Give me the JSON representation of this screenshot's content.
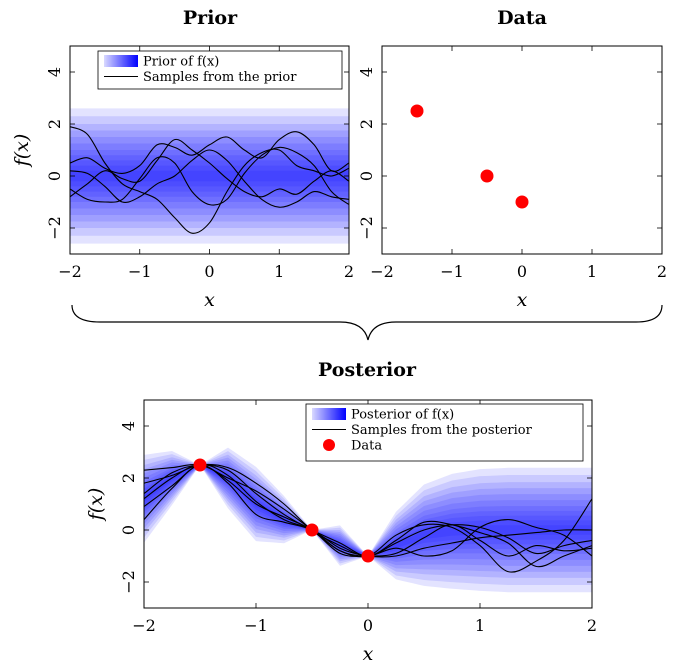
{
  "chart_data": [
    {
      "id": "prior",
      "type": "area",
      "title": "Prior",
      "xlabel": "x",
      "ylabel": "f(x)",
      "xlim": [
        -2,
        2
      ],
      "ylim": [
        -3,
        5
      ],
      "xticks": [
        "−2",
        "−1",
        "0",
        "1",
        "2"
      ],
      "yticks": [
        "−2",
        "0",
        "2",
        "4"
      ],
      "legend": [
        "Prior of f(x)",
        "Samples from the prior"
      ],
      "legend_position": "top",
      "band": {
        "x": [
          -2,
          2
        ],
        "mean": [
          0,
          0
        ],
        "std": [
          1.0,
          1.0
        ]
      },
      "series": [
        {
          "x": [
            -2.0,
            -1.75,
            -1.5,
            -1.25,
            -1.0,
            -0.75,
            -0.5,
            -0.25,
            0.0,
            0.25,
            0.5,
            0.75,
            1.0,
            1.25,
            1.5,
            1.75,
            2.0
          ],
          "y": [
            1.9,
            1.6,
            0.5,
            -0.3,
            -0.6,
            -0.9,
            -1.6,
            -2.2,
            -1.8,
            -0.6,
            0.4,
            0.9,
            1.0,
            0.4,
            0.2,
            0.0,
            0.3
          ]
        },
        {
          "x": [
            -2.0,
            -1.75,
            -1.5,
            -1.25,
            -1.0,
            -0.75,
            -0.5,
            -0.25,
            0.0,
            0.25,
            0.5,
            0.75,
            1.0,
            1.25,
            1.5,
            1.75,
            2.0
          ],
          "y": [
            0.5,
            0.7,
            0.3,
            0.1,
            0.4,
            1.2,
            1.1,
            0.8,
            1.2,
            1.5,
            1.0,
            0.7,
            1.4,
            1.7,
            1.2,
            0.2,
            0.5
          ]
        },
        {
          "x": [
            -2.0,
            -1.75,
            -1.5,
            -1.25,
            -1.0,
            -0.75,
            -0.5,
            -0.25,
            0.0,
            0.25,
            0.5,
            0.75,
            1.0,
            1.25,
            1.5,
            1.75,
            2.0
          ],
          "y": [
            -0.8,
            -0.3,
            0.2,
            -0.1,
            -0.2,
            0.6,
            1.4,
            1.0,
            0.5,
            -0.1,
            -0.6,
            -0.8,
            -0.5,
            -0.7,
            -0.2,
            0.2,
            -0.2
          ]
        },
        {
          "x": [
            -2.0,
            -1.75,
            -1.5,
            -1.25,
            -1.0,
            -0.75,
            -0.5,
            -0.25,
            0.0,
            0.25,
            0.5,
            0.75,
            1.0,
            1.25,
            1.5,
            1.75,
            2.0
          ],
          "y": [
            -0.5,
            -0.9,
            -1.0,
            -0.9,
            -0.1,
            0.7,
            0.5,
            -0.6,
            -1.1,
            -0.9,
            0.1,
            0.8,
            1.1,
            0.9,
            0.4,
            -0.6,
            -1.1
          ]
        },
        {
          "x": [
            -2.0,
            -1.75,
            -1.5,
            -1.25,
            -1.0,
            -0.75,
            -0.5,
            -0.25,
            0.0,
            0.25,
            0.5,
            0.75,
            1.0,
            1.25,
            1.5,
            1.75,
            2.0
          ],
          "y": [
            0.2,
            0.1,
            -0.4,
            -1.0,
            -0.8,
            -0.3,
            0.0,
            0.6,
            1.0,
            0.6,
            -0.2,
            -0.9,
            -1.2,
            -1.0,
            -0.6,
            -0.8,
            -0.9
          ]
        }
      ]
    },
    {
      "id": "data",
      "type": "scatter",
      "title": "Data",
      "xlabel": "x",
      "ylabel": "",
      "xlim": [
        -2,
        2
      ],
      "ylim": [
        -3,
        5
      ],
      "xticks": [
        "−2",
        "−1",
        "0",
        "1",
        "2"
      ],
      "yticks": [
        "−2",
        "0",
        "2",
        "4"
      ],
      "points": [
        {
          "x": -1.5,
          "y": 2.5
        },
        {
          "x": -0.5,
          "y": 0.0
        },
        {
          "x": 0.0,
          "y": -1.0
        }
      ],
      "point_color": "#ff0000"
    },
    {
      "id": "posterior",
      "type": "area",
      "title": "Posterior",
      "xlabel": "x",
      "ylabel": "f(x)",
      "xlim": [
        -2,
        2
      ],
      "ylim": [
        -3,
        5
      ],
      "xticks": [
        "−2",
        "−1",
        "0",
        "1",
        "2"
      ],
      "yticks": [
        "−2",
        "0",
        "2",
        "4"
      ],
      "legend": [
        "Posterior of f(x)",
        "Samples from the posterior",
        "Data"
      ],
      "legend_position": "top-right",
      "band": {
        "x": [
          -2.0,
          -1.75,
          -1.5,
          -1.25,
          -1.0,
          -0.75,
          -0.5,
          -0.25,
          0.0,
          0.25,
          0.5,
          0.75,
          1.0,
          1.25,
          1.5,
          1.75,
          2.0
        ],
        "mean": [
          1.2,
          2.0,
          2.5,
          2.0,
          1.0,
          0.4,
          0.0,
          -0.6,
          -1.0,
          -0.6,
          -0.2,
          -0.05,
          0.0,
          0.0,
          0.0,
          0.0,
          0.0
        ],
        "std": [
          0.65,
          0.4,
          0.0,
          0.45,
          0.55,
          0.35,
          0.0,
          0.3,
          0.0,
          0.5,
          0.75,
          0.85,
          0.9,
          0.92,
          0.92,
          0.92,
          0.92
        ]
      },
      "series": [
        {
          "x": [
            -2.0,
            -1.75,
            -1.5,
            -1.25,
            -1.0,
            -0.75,
            -0.5,
            -0.25,
            0.0,
            0.25,
            0.5,
            0.75,
            1.0,
            1.25,
            1.5,
            1.75,
            2.0
          ],
          "y": [
            2.3,
            2.4,
            2.5,
            2.0,
            1.5,
            0.8,
            0.0,
            -0.8,
            -1.0,
            -0.2,
            0.2,
            0.1,
            -0.6,
            -1.6,
            -1.2,
            -0.4,
            1.2
          ]
        },
        {
          "x": [
            -2.0,
            -1.75,
            -1.5,
            -1.25,
            -1.0,
            -0.75,
            -0.5,
            -0.25,
            0.0,
            0.25,
            0.5,
            0.75,
            1.0,
            1.25,
            1.5,
            1.75,
            2.0
          ],
          "y": [
            1.8,
            2.1,
            2.5,
            2.4,
            1.8,
            1.0,
            0.0,
            -0.6,
            -1.0,
            -0.5,
            0.0,
            0.2,
            0.1,
            -0.3,
            -0.9,
            -0.6,
            -0.4
          ]
        },
        {
          "x": [
            -2.0,
            -1.75,
            -1.5,
            -1.25,
            -1.0,
            -0.75,
            -0.5,
            -0.25,
            0.0,
            0.25,
            0.5,
            0.75,
            1.0,
            1.25,
            1.5,
            1.75,
            2.0
          ],
          "y": [
            0.4,
            1.6,
            2.5,
            1.8,
            0.6,
            0.3,
            0.0,
            -0.7,
            -1.0,
            -1.0,
            -0.7,
            -0.5,
            -0.3,
            -0.2,
            -0.1,
            0.0,
            0.0
          ]
        },
        {
          "x": [
            -2.0,
            -1.75,
            -1.5,
            -1.25,
            -1.0,
            -0.75,
            -0.5,
            -0.25,
            0.0,
            0.25,
            0.5,
            0.75,
            1.0,
            1.25,
            1.5,
            1.75,
            2.0
          ],
          "y": [
            1.2,
            2.0,
            2.5,
            1.9,
            1.0,
            0.5,
            0.0,
            -0.9,
            -1.0,
            -0.9,
            -0.3,
            0.2,
            -0.4,
            -1.0,
            -0.6,
            -0.8,
            -0.7
          ]
        },
        {
          "x": [
            -2.0,
            -1.75,
            -1.5,
            -1.25,
            -1.0,
            -0.75,
            -0.5,
            -0.25,
            0.0,
            0.25,
            0.5,
            0.75,
            1.0,
            1.25,
            1.5,
            1.75,
            2.0
          ],
          "y": [
            1.4,
            2.2,
            2.5,
            2.3,
            1.4,
            0.6,
            0.0,
            -0.5,
            -1.0,
            -0.4,
            0.3,
            0.2,
            -0.1,
            -0.5,
            -1.4,
            -1.0,
            -0.6
          ]
        },
        {
          "x": [
            -2.0,
            -1.75,
            -1.5,
            -1.25,
            -1.0,
            -0.75,
            -0.5,
            -0.25,
            0.0,
            0.25,
            0.5,
            0.75,
            1.0,
            1.25,
            1.5,
            1.75,
            2.0
          ],
          "y": [
            0.9,
            1.7,
            2.5,
            2.1,
            1.1,
            0.4,
            0.0,
            -0.8,
            -1.0,
            -0.7,
            -1.0,
            -0.8,
            0.1,
            0.4,
            0.1,
            -0.2,
            -1.0
          ]
        }
      ],
      "points": [
        {
          "x": -1.5,
          "y": 2.5
        },
        {
          "x": -0.5,
          "y": 0.0
        },
        {
          "x": 0.0,
          "y": -1.0
        }
      ],
      "point_color": "#ff0000",
      "band_color": "#0000ff"
    }
  ]
}
